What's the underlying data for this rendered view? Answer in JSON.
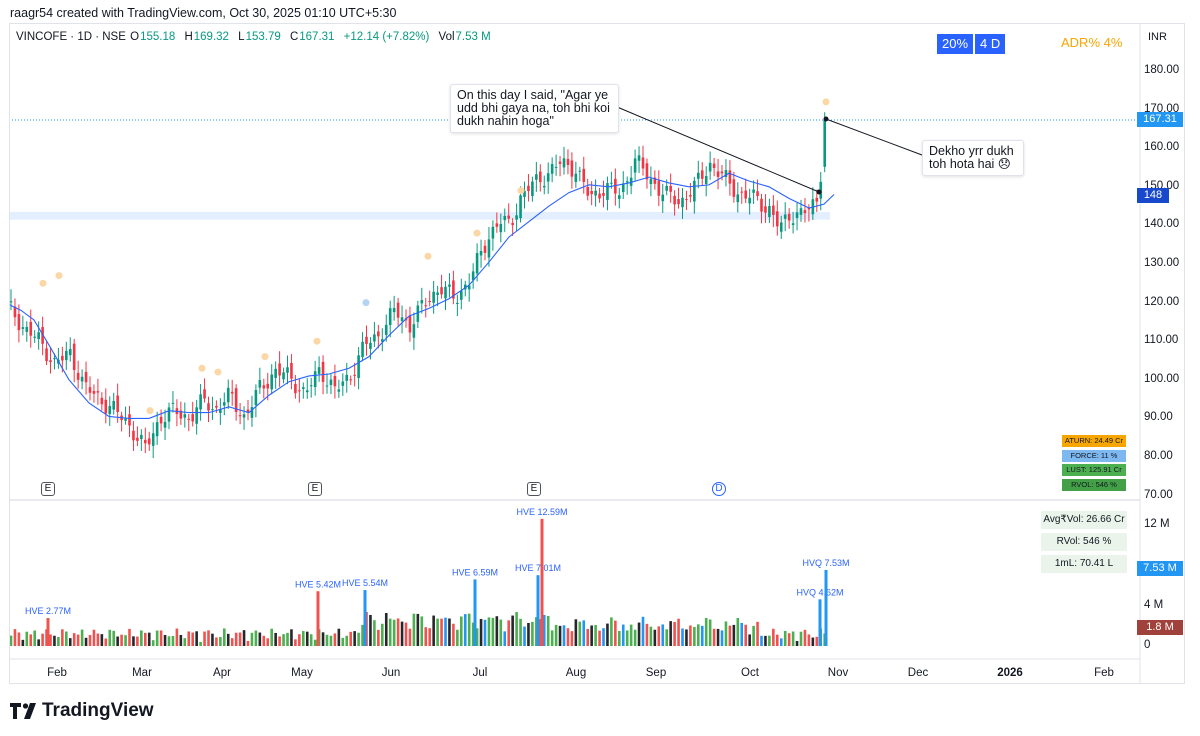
{
  "header": {
    "text": "raagr54 created with TradingView.com, Oct 30, 2025 01:10 UTC+5:30"
  },
  "legend": {
    "symbol": "VINCOFE · 1D · NSE",
    "o_key": "O",
    "o_val": "155.18",
    "h_key": "H",
    "h_val": "169.32",
    "l_key": "L",
    "l_val": "153.79",
    "c_key": "C",
    "c_val": "167.31",
    "chg": "+12.14 (+7.82%)",
    "vol_key": "Vol",
    "vol_val": "7.53 M"
  },
  "badges": {
    "pct": "20%",
    "days": "4 D",
    "adr": "ADR%  4%"
  },
  "currency": "INR",
  "price_labels": {
    "last": "167.31",
    "level": "148"
  },
  "volume_labels": {
    "last": "7.53 M",
    "avg": "1.8 M"
  },
  "stats_box": [
    {
      "text": "ATURN: 24.49 Cr",
      "color": "#f7a600"
    },
    {
      "text": "FORCE: 11 %",
      "color": "#7eb8f0"
    },
    {
      "text": "LUST: 125.91 Cr",
      "color": "#4caf50"
    },
    {
      "text": "RVOL: 546 %",
      "color": "#43a047"
    }
  ],
  "volume_stats": [
    "Avg₹Vol: 26.66 Cr",
    "RVol: 546 %",
    "1mL: 70.41 L"
  ],
  "annotations": {
    "left": "On this day I said, \"Agar ye udd bhi gaya na, toh bhi koi dukh nahin hoga\"",
    "right": "Dekho yrr dukh toh hota hai 😞"
  },
  "events": [
    "E",
    "E",
    "E",
    "D"
  ],
  "logo": "TradingView",
  "colors": {
    "up": "#089981",
    "down": "#f23645",
    "ma": "#2962ff",
    "zone": "#e3eefe",
    "up_vol": "#4caf50",
    "down_vol": "#ef5350",
    "blue_vol": "#2196f3"
  },
  "chart_data": {
    "type": "candlestick",
    "symbol": "VINCOFE",
    "interval": "1D",
    "exchange": "NSE",
    "price_axis": {
      "ticks": [
        70,
        80,
        90,
        100,
        110,
        120,
        130,
        140,
        150,
        160,
        170,
        180
      ],
      "range": [
        68,
        185
      ]
    },
    "volume_axis": {
      "ticks": [
        "0",
        "4 M",
        "12 M"
      ],
      "range_millions": [
        0,
        14
      ]
    },
    "x_labels": [
      "Feb",
      "Mar",
      "Apr",
      "May",
      "Jun",
      "Jul",
      "Aug",
      "Sep",
      "Oct",
      "Nov",
      "Dec",
      "2026",
      "Feb"
    ],
    "last_price": 167.31,
    "support_zone": [
      141.5,
      143.5
    ],
    "ma_series": [
      [
        0,
        119.5
      ],
      [
        12,
        118
      ],
      [
        25,
        115.5
      ],
      [
        40,
        109
      ],
      [
        60,
        100
      ],
      [
        80,
        94
      ],
      [
        100,
        90.5
      ],
      [
        120,
        90
      ],
      [
        140,
        90
      ],
      [
        160,
        92
      ],
      [
        180,
        91.5
      ],
      [
        200,
        91.5
      ],
      [
        220,
        93
      ],
      [
        240,
        91.5
      ],
      [
        260,
        96
      ],
      [
        280,
        99.5
      ],
      [
        300,
        101
      ],
      [
        320,
        101.5
      ],
      [
        340,
        103
      ],
      [
        360,
        106
      ],
      [
        380,
        111.5
      ],
      [
        400,
        116.5
      ],
      [
        420,
        118.5
      ],
      [
        440,
        121
      ],
      [
        460,
        124.5
      ],
      [
        480,
        130.5
      ],
      [
        500,
        137
      ],
      [
        520,
        141
      ],
      [
        540,
        145
      ],
      [
        560,
        148.5
      ],
      [
        580,
        150.5
      ],
      [
        600,
        150
      ],
      [
        620,
        151
      ],
      [
        640,
        152.5
      ],
      [
        660,
        151
      ],
      [
        680,
        150
      ],
      [
        700,
        150.5
      ],
      [
        720,
        153.5
      ],
      [
        740,
        151.5
      ],
      [
        760,
        150
      ],
      [
        780,
        147
      ],
      [
        800,
        144.5
      ],
      [
        815,
        145.5
      ],
      [
        825,
        148
      ]
    ],
    "closes_sampled": [
      [
        0,
        119
      ],
      [
        12,
        118
      ],
      [
        25,
        113
      ],
      [
        40,
        110
      ],
      [
        55,
        104
      ],
      [
        70,
        107
      ],
      [
        85,
        98
      ],
      [
        100,
        95
      ],
      [
        115,
        92
      ],
      [
        130,
        88
      ],
      [
        145,
        82
      ],
      [
        160,
        90
      ],
      [
        175,
        92
      ],
      [
        190,
        90
      ],
      [
        205,
        95
      ],
      [
        215,
        92
      ],
      [
        230,
        96
      ],
      [
        245,
        90
      ],
      [
        260,
        98
      ],
      [
        275,
        102
      ],
      [
        290,
        101
      ],
      [
        305,
        96
      ],
      [
        320,
        103
      ],
      [
        335,
        97
      ],
      [
        350,
        101
      ],
      [
        365,
        109
      ],
      [
        380,
        112
      ],
      [
        395,
        118
      ],
      [
        410,
        114
      ],
      [
        425,
        120
      ],
      [
        440,
        124
      ],
      [
        455,
        121
      ],
      [
        470,
        126
      ],
      [
        480,
        132
      ],
      [
        490,
        138
      ],
      [
        500,
        141
      ],
      [
        510,
        140
      ],
      [
        520,
        147
      ],
      [
        530,
        150
      ],
      [
        545,
        153
      ],
      [
        560,
        156
      ],
      [
        575,
        155
      ],
      [
        590,
        147
      ],
      [
        605,
        150
      ],
      [
        620,
        148
      ],
      [
        635,
        157
      ],
      [
        650,
        152
      ],
      [
        665,
        148
      ],
      [
        680,
        146
      ],
      [
        695,
        150
      ],
      [
        710,
        156
      ],
      [
        725,
        152
      ],
      [
        740,
        148
      ],
      [
        755,
        147
      ],
      [
        770,
        144
      ],
      [
        780,
        139
      ],
      [
        790,
        143
      ],
      [
        800,
        143
      ],
      [
        810,
        144
      ],
      [
        818,
        147
      ],
      [
        826,
        167.31
      ]
    ],
    "hve_labels": [
      {
        "text": "HVE 2.77M",
        "x": 48,
        "vol": 2.77,
        "color": "#ef5350"
      },
      {
        "text": "HVE 5.42M",
        "x": 318,
        "vol": 5.42,
        "color": "#ef5350"
      },
      {
        "text": "HVE 5.54M",
        "x": 365,
        "vol": 5.54,
        "color": "#2196f3"
      },
      {
        "text": "HVE 6.59M",
        "x": 475,
        "vol": 6.59,
        "color": "#2196f3"
      },
      {
        "text": "HVE 7.01M",
        "x": 538,
        "vol": 7.01,
        "color": "#2196f3"
      },
      {
        "text": "HVE 12.59M",
        "x": 542,
        "vol": 12.59,
        "color": "#ef5350"
      },
      {
        "text": "HVQ 4.62M",
        "x": 820,
        "vol": 4.62,
        "color": "#2196f3"
      },
      {
        "text": "HVQ 7.53M",
        "x": 826,
        "vol": 7.53,
        "color": "#2196f3"
      }
    ]
  }
}
